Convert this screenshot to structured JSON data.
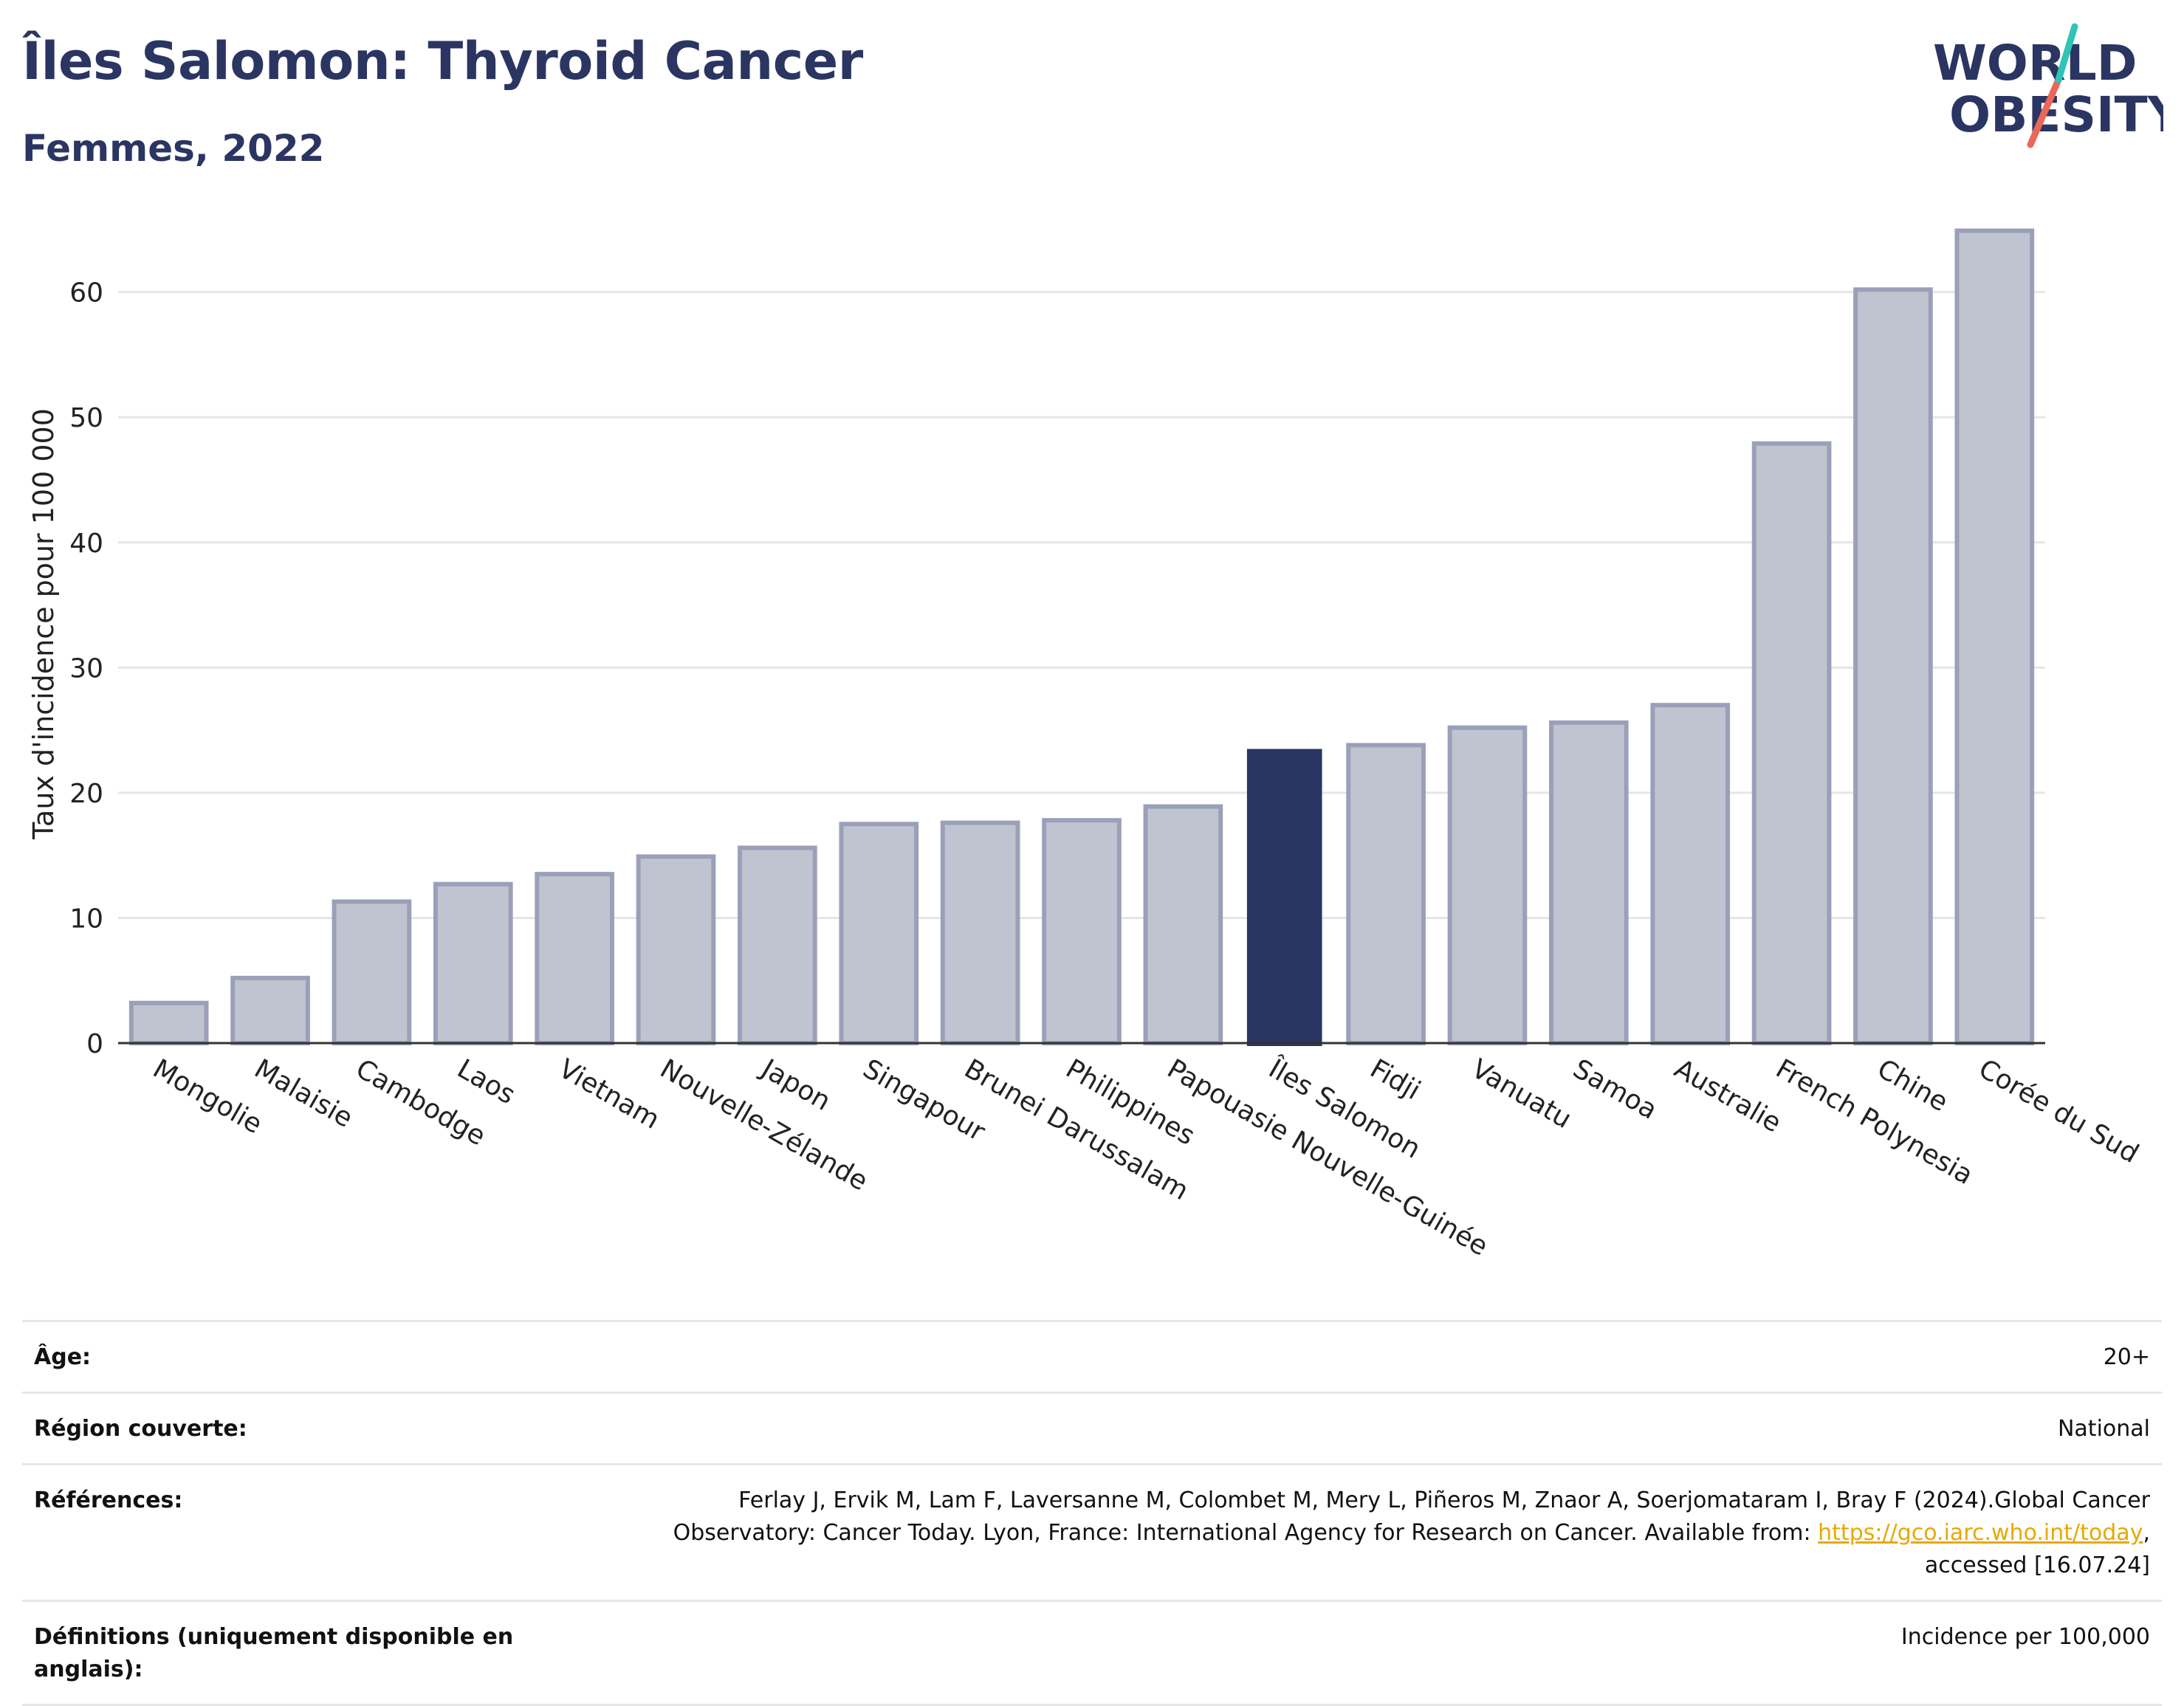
{
  "header": {
    "title": "Îles Salomon: Thyroid Cancer",
    "subtitle": "Femmes, 2022"
  },
  "logo": {
    "line1": "WORLD",
    "line2": "OBESITY",
    "accent": "#2ec4b6",
    "accent2": "#e9685a",
    "color": "#2b3562"
  },
  "colors": {
    "highlight": "#2b3562",
    "bar_fill": "#c0c4d1",
    "bar_stroke": "#9aa0b8",
    "grid": "#e6e6e6"
  },
  "chart_data": {
    "type": "bar",
    "categories": [
      "Mongolie",
      "Malaisie",
      "Cambodge",
      "Laos",
      "Vietnam",
      "Nouvelle-Zélande",
      "Japon",
      "Singapour",
      "Brunei Darussalam",
      "Philippines",
      "Papouasie Nouvelle-Guinée",
      "Îles Salomon",
      "Fidji",
      "Vanuatu",
      "Samoa",
      "Australie",
      "French Polynesia",
      "Chine",
      "Corée du Sud"
    ],
    "values": [
      3.2,
      5.2,
      11.3,
      12.7,
      13.5,
      14.9,
      15.6,
      17.5,
      17.6,
      17.8,
      18.9,
      23.5,
      23.8,
      25.2,
      25.6,
      27.0,
      47.9,
      60.2,
      64.9
    ],
    "highlight": "Îles Salomon",
    "ylabel": "Taux d'incidence pour 100 000",
    "ylim": [
      0,
      68
    ],
    "yticks": [
      0,
      10,
      20,
      30,
      40,
      50,
      60
    ],
    "grid": true
  },
  "meta": {
    "age_label": "Âge:",
    "age_value": "20+",
    "region_label": "Région couverte:",
    "region_value": "National",
    "refs_label": "Références:",
    "refs_text": "Ferlay J, Ervik M, Lam F, Laversanne M, Colombet M, Mery L, Piñeros M, Znaor A, Soerjomataram I, Bray F (2024).Global Cancer Observatory: Cancer Today. Lyon, France: International Agency for Research on Cancer. Available from: ",
    "refs_link": "https://gco.iarc.who.int/today",
    "refs_tail": ", accessed [16.07.24]",
    "defs_label": "Définitions (uniquement disponible en anglais):",
    "defs_value": "Incidence per 100,000"
  }
}
